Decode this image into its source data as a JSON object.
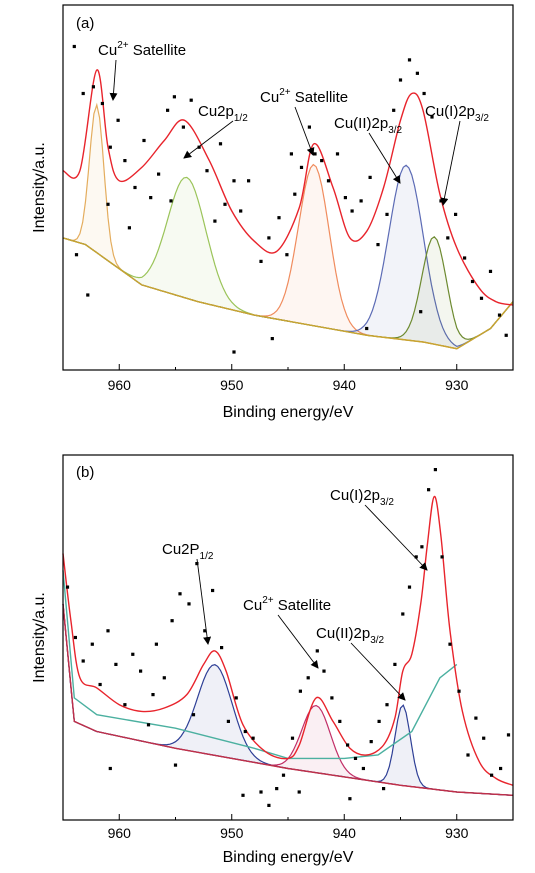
{
  "chart_data": [
    {
      "type": "line",
      "panel_label": "(a)",
      "xlabel": "Binding energy/eV",
      "ylabel": "Intensity/a.u.",
      "xlim": [
        965,
        925
      ],
      "xticks": [
        960,
        950,
        940,
        930
      ],
      "y_ticks_shown": false,
      "grid": false,
      "annotations": [
        {
          "base": "Cu",
          "sup": "2+",
          "rest": " Satellite",
          "arrow_to_energy": 962
        },
        {
          "base": "Cu2p",
          "sub": "1/2",
          "rest": "",
          "arrow_to_energy": 954
        },
        {
          "base": "Cu",
          "sup": "2+",
          "rest": " Satellite",
          "arrow_to_energy": 942.5
        },
        {
          "base": "Cu(II)2p",
          "sub": "3/2",
          "rest": "",
          "arrow_to_energy": 934.5
        },
        {
          "base": "Cu(I)2p",
          "sub": "3/2",
          "rest": "",
          "arrow_to_energy": 932
        }
      ],
      "series": [
        {
          "role": "envelope",
          "color": "#e8242c",
          "x": [
            965,
            963.5,
            962.0,
            961.0,
            960.0,
            958.0,
            956.0,
            954.2,
            952.0,
            950.0,
            948.0,
            946.0,
            944.0,
            942.7,
            941.0,
            939.5,
            938.0,
            936.5,
            935.0,
            934.0,
            933.0,
            931.5,
            930.0,
            928.0,
            926.5,
            925.0
          ],
          "y": [
            0.55,
            0.55,
            0.85,
            0.62,
            0.52,
            0.56,
            0.64,
            0.7,
            0.58,
            0.43,
            0.34,
            0.31,
            0.44,
            0.63,
            0.5,
            0.35,
            0.37,
            0.5,
            0.7,
            0.78,
            0.73,
            0.48,
            0.32,
            0.2,
            0.16,
            0.15
          ]
        },
        {
          "role": "background",
          "color": "#c8a431",
          "x": [
            965,
            963,
            958,
            953,
            948,
            943,
            938,
            933,
            930,
            927,
            925
          ],
          "y": [
            0.35,
            0.33,
            0.21,
            0.16,
            0.12,
            0.09,
            0.06,
            0.04,
            0.02,
            0.08,
            0.16
          ]
        },
        {
          "role": "component",
          "name": "",
          "color": "#e4ad5e",
          "center": 962.0,
          "fwhm": 1.5,
          "height": 0.44
        },
        {
          "role": "component",
          "name": "",
          "color": "#9bc45a",
          "center": 954.0,
          "fwhm": 4.0,
          "height": 0.36
        },
        {
          "role": "component",
          "name": "",
          "color": "#f08c5e",
          "center": 942.7,
          "fwhm": 3.2,
          "height": 0.48
        },
        {
          "role": "component",
          "name": "",
          "color": "#5c6bb5",
          "center": 934.5,
          "fwhm": 3.6,
          "height": 0.52
        },
        {
          "role": "component",
          "name": "",
          "color": "#6d8a30",
          "center": 932.0,
          "fwhm": 2.6,
          "height": 0.32
        }
      ],
      "scatter": [
        [
          964,
          0.92
        ],
        [
          963.2,
          0.78
        ],
        [
          962.3,
          0.8
        ],
        [
          961.5,
          0.75
        ],
        [
          960.8,
          0.62
        ],
        [
          960.1,
          0.7
        ],
        [
          959.5,
          0.58
        ],
        [
          958.6,
          0.5
        ],
        [
          957.8,
          0.64
        ],
        [
          957.2,
          0.47
        ],
        [
          956.5,
          0.54
        ],
        [
          955.7,
          0.73
        ],
        [
          955.1,
          0.77
        ],
        [
          954.3,
          0.68
        ],
        [
          953.6,
          0.76
        ],
        [
          952.9,
          0.62
        ],
        [
          952.2,
          0.55
        ],
        [
          951.5,
          0.4
        ],
        [
          950.6,
          0.45
        ],
        [
          949.8,
          0.52
        ],
        [
          949.2,
          0.43
        ],
        [
          948.5,
          0.52
        ],
        [
          947.4,
          0.28
        ],
        [
          946.7,
          0.35
        ],
        [
          945.8,
          0.41
        ],
        [
          945.1,
          0.3
        ],
        [
          944.4,
          0.48
        ],
        [
          943.8,
          0.56
        ],
        [
          943.1,
          0.68
        ],
        [
          942.6,
          0.6
        ],
        [
          942.0,
          0.58
        ],
        [
          941.4,
          0.52
        ],
        [
          940.6,
          0.6
        ],
        [
          939.9,
          0.47
        ],
        [
          939.3,
          0.43
        ],
        [
          938.5,
          0.46
        ],
        [
          937.7,
          0.53
        ],
        [
          937.0,
          0.33
        ],
        [
          936.2,
          0.42
        ],
        [
          935.6,
          0.73
        ],
        [
          935.0,
          0.82
        ],
        [
          934.2,
          0.88
        ],
        [
          933.5,
          0.84
        ],
        [
          932.9,
          0.78
        ],
        [
          932.2,
          0.71
        ],
        [
          931.4,
          0.46
        ],
        [
          930.8,
          0.35
        ],
        [
          930.1,
          0.42
        ],
        [
          929.3,
          0.29
        ],
        [
          928.6,
          0.22
        ],
        [
          927.8,
          0.17
        ],
        [
          927.0,
          0.25
        ],
        [
          926.2,
          0.12
        ],
        [
          925.6,
          0.06
        ],
        [
          949.8,
          0.01
        ],
        [
          946.4,
          0.05
        ],
        [
          938.0,
          0.08
        ],
        [
          955.4,
          0.46
        ],
        [
          959.1,
          0.38
        ],
        [
          961.0,
          0.45
        ],
        [
          963.8,
          0.3
        ],
        [
          933.2,
          0.13
        ],
        [
          944.7,
          0.6
        ],
        [
          951.0,
          0.63
        ],
        [
          962.8,
          0.18
        ]
      ]
    },
    {
      "type": "line",
      "panel_label": "(b)",
      "xlabel": "Binding energy/eV",
      "ylabel": "Intensity/a.u.",
      "xlim": [
        965,
        925
      ],
      "xticks": [
        960,
        950,
        940,
        930
      ],
      "y_ticks_shown": false,
      "grid": false,
      "annotations": [
        {
          "base": "Cu(I)2p",
          "sub": "3/2",
          "rest": "",
          "arrow_to_energy": 932
        },
        {
          "base": "Cu2P",
          "sub": "1/2",
          "rest": "",
          "arrow_to_energy": 951.5
        },
        {
          "base": "Cu",
          "sup": "2+",
          "rest": " Satellite",
          "arrow_to_energy": 942.5
        },
        {
          "base": "Cu(II)2p",
          "sub": "3/2",
          "rest": "",
          "arrow_to_energy": 934.8
        }
      ],
      "series": [
        {
          "role": "envelope",
          "color": "#e8242c",
          "x": [
            965,
            964.3,
            963.5,
            962,
            960,
            958,
            956,
            954,
            952.5,
            951.5,
            950.5,
            949,
            947,
            945,
            944,
            942.5,
            941,
            939.5,
            938,
            936.5,
            935.5,
            934.8,
            934.0,
            933.2,
            932.6,
            932.0,
            931.4,
            930.6,
            929.5,
            928,
            926.5,
            925
          ],
          "y": [
            0.75,
            0.55,
            0.38,
            0.35,
            0.3,
            0.28,
            0.29,
            0.33,
            0.42,
            0.46,
            0.4,
            0.24,
            0.16,
            0.14,
            0.18,
            0.32,
            0.25,
            0.17,
            0.15,
            0.18,
            0.26,
            0.4,
            0.45,
            0.6,
            0.78,
            0.92,
            0.8,
            0.52,
            0.28,
            0.13,
            0.08,
            0.06
          ]
        },
        {
          "role": "background",
          "color": "#c03048",
          "x": [
            965,
            964,
            962,
            955,
            945,
            935,
            930,
            925
          ],
          "y": [
            0.6,
            0.25,
            0.22,
            0.17,
            0.11,
            0.06,
            0.04,
            0.03
          ]
        },
        {
          "role": "background",
          "color": "#4bb0a0",
          "x": [
            965,
            964,
            962,
            955,
            948,
            945,
            940,
            937,
            934,
            931.5,
            930
          ],
          "y": [
            0.7,
            0.32,
            0.27,
            0.23,
            0.17,
            0.14,
            0.14,
            0.15,
            0.22,
            0.38,
            0.42
          ]
        },
        {
          "role": "component",
          "name": "",
          "color": "#2e3f96",
          "center": 951.5,
          "fwhm": 3.6,
          "height": 0.27
        },
        {
          "role": "component",
          "name": "",
          "color": "#c23068",
          "center": 942.5,
          "fwhm": 3.0,
          "height": 0.2
        },
        {
          "role": "component",
          "name": "",
          "color": "#2e3f96",
          "center": 934.8,
          "fwhm": 1.6,
          "height": 0.24
        }
      ],
      "scatter": [
        [
          964.6,
          0.65
        ],
        [
          963.9,
          0.5
        ],
        [
          963.2,
          0.43
        ],
        [
          962.4,
          0.48
        ],
        [
          961.7,
          0.36
        ],
        [
          961.0,
          0.52
        ],
        [
          960.3,
          0.42
        ],
        [
          959.5,
          0.3
        ],
        [
          958.8,
          0.45
        ],
        [
          958.1,
          0.4
        ],
        [
          957.4,
          0.24
        ],
        [
          956.7,
          0.48
        ],
        [
          956.0,
          0.38
        ],
        [
          955.3,
          0.55
        ],
        [
          954.6,
          0.63
        ],
        [
          953.8,
          0.6
        ],
        [
          953.1,
          0.72
        ],
        [
          952.4,
          0.52
        ],
        [
          951.7,
          0.64
        ],
        [
          950.9,
          0.47
        ],
        [
          950.3,
          0.25
        ],
        [
          949.6,
          0.32
        ],
        [
          948.8,
          0.22
        ],
        [
          948.1,
          0.2
        ],
        [
          947.4,
          0.04
        ],
        [
          946.7,
          0.0
        ],
        [
          946.0,
          0.05
        ],
        [
          945.4,
          0.09
        ],
        [
          944.6,
          0.2
        ],
        [
          943.9,
          0.34
        ],
        [
          943.2,
          0.38
        ],
        [
          942.4,
          0.46
        ],
        [
          941.8,
          0.4
        ],
        [
          941.1,
          0.32
        ],
        [
          940.4,
          0.25
        ],
        [
          939.7,
          0.18
        ],
        [
          939.0,
          0.14
        ],
        [
          938.3,
          0.11
        ],
        [
          937.6,
          0.19
        ],
        [
          936.9,
          0.25
        ],
        [
          936.2,
          0.3
        ],
        [
          935.5,
          0.42
        ],
        [
          934.8,
          0.57
        ],
        [
          934.2,
          0.65
        ],
        [
          933.6,
          0.74
        ],
        [
          933.1,
          0.77
        ],
        [
          932.5,
          0.94
        ],
        [
          931.9,
          1.0
        ],
        [
          931.3,
          0.74
        ],
        [
          930.6,
          0.48
        ],
        [
          929.8,
          0.34
        ],
        [
          929.0,
          0.15
        ],
        [
          928.3,
          0.26
        ],
        [
          927.6,
          0.2
        ],
        [
          926.9,
          0.09
        ],
        [
          926.1,
          0.11
        ],
        [
          925.4,
          0.21
        ],
        [
          957.0,
          0.33
        ],
        [
          955.0,
          0.12
        ],
        [
          949.0,
          0.03
        ],
        [
          944.0,
          0.04
        ],
        [
          939.5,
          0.02
        ],
        [
          936.5,
          0.05
        ],
        [
          953.4,
          0.27
        ],
        [
          960.8,
          0.11
        ]
      ]
    }
  ]
}
